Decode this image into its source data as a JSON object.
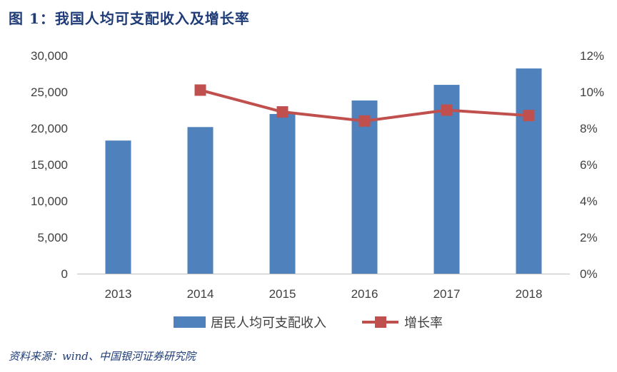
{
  "title": "图 1：我国人均可支配收入及增长率",
  "source": "资料来源：wind、中国银河证券研究院",
  "chart_data": {
    "type": "bar",
    "categories": [
      "2013",
      "2014",
      "2015",
      "2016",
      "2017",
      "2018"
    ],
    "series": [
      {
        "name": "居民人均可支配收入",
        "type": "bar",
        "axis": "left",
        "color": "#4f81bd",
        "values": [
          18311,
          20167,
          21966,
          23821,
          25974,
          28228
        ]
      },
      {
        "name": "增长率",
        "type": "line",
        "axis": "right",
        "color": "#c0504d",
        "values": [
          null,
          10.1,
          8.9,
          8.4,
          9.0,
          8.7
        ]
      }
    ],
    "y_left": {
      "range": [
        0,
        30000
      ],
      "ticks": [
        "0",
        "5,000",
        "10,000",
        "15,000",
        "20,000",
        "25,000",
        "30,000"
      ]
    },
    "y_right": {
      "range": [
        0,
        12
      ],
      "ticks": [
        "0%",
        "2%",
        "4%",
        "6%",
        "8%",
        "10%",
        "12%"
      ]
    },
    "grid": false,
    "legend_position": "bottom"
  }
}
